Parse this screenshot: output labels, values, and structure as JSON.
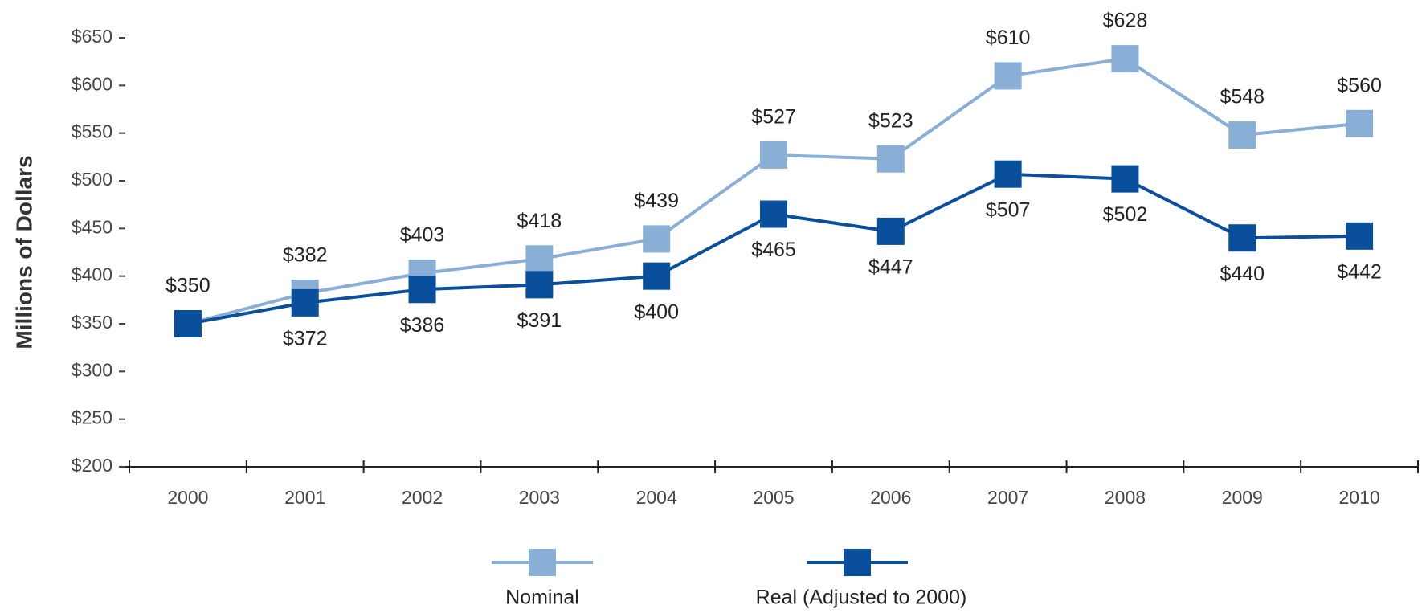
{
  "chart_data": {
    "type": "line",
    "y_label": "Millions of Dollars",
    "categories": [
      "2000",
      "2001",
      "2002",
      "2003",
      "2004",
      "2005",
      "2006",
      "2007",
      "2008",
      "2009",
      "2010"
    ],
    "series": [
      {
        "name": "Nominal",
        "color": "#8aafd6",
        "values": [
          350,
          382,
          403,
          418,
          439,
          527,
          523,
          610,
          628,
          548,
          560
        ],
        "value_labels": [
          "$350",
          "$382",
          "$403",
          "$418",
          "$439",
          "$527",
          "$523",
          "$610",
          "$628",
          "$548",
          "$560"
        ]
      },
      {
        "name": "Real (Adjusted to 2000)",
        "color": "#0a4f9c",
        "values": [
          350,
          372,
          386,
          391,
          400,
          465,
          447,
          507,
          502,
          440,
          442
        ],
        "value_labels": [
          null,
          "$372",
          "$386",
          "$391",
          "$400",
          "$465",
          "$447",
          "$507",
          "$502",
          "$440",
          "$442"
        ]
      }
    ],
    "ylim": [
      200,
      650
    ],
    "yticks": [
      {
        "value": 200,
        "label": "$200"
      },
      {
        "value": 250,
        "label": "$250"
      },
      {
        "value": 300,
        "label": "$300"
      },
      {
        "value": 350,
        "label": "$350"
      },
      {
        "value": 400,
        "label": "$400"
      },
      {
        "value": 450,
        "label": "$450"
      },
      {
        "value": 500,
        "label": "$500"
      },
      {
        "value": 550,
        "label": "$550"
      },
      {
        "value": 600,
        "label": "$600"
      },
      {
        "value": 650,
        "label": "$650"
      }
    ],
    "legend": "bottom"
  }
}
